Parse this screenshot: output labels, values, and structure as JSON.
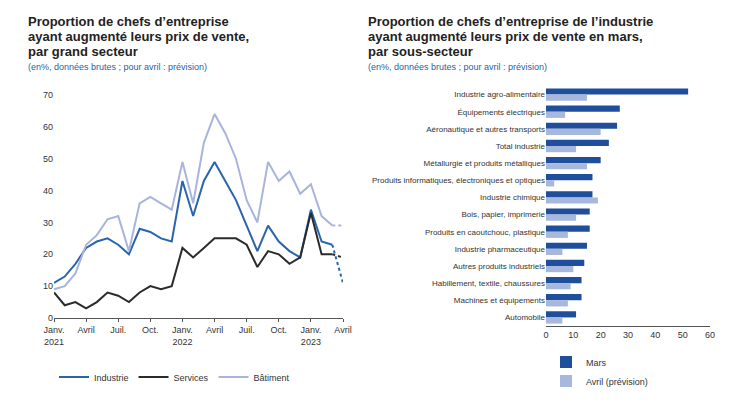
{
  "chart_data": [
    {
      "type": "line",
      "title": "Proportion de chefs d’entreprise\nayant augmenté leurs prix de vente,\npar grand secteur",
      "subtitle": "(en%, données brutes ; pour avril : prévision)",
      "categories": [
        "Janv.\n2021",
        null,
        null,
        "Avril",
        null,
        null,
        "Juil.",
        null,
        null,
        "Oct.",
        null,
        null,
        "Janv.\n2022",
        null,
        null,
        "Avril",
        null,
        null,
        "Juil.",
        null,
        null,
        "Oct.",
        null,
        null,
        "Janv.\n2023",
        null,
        null,
        "Avril"
      ],
      "series": [
        {
          "name": "Industrie",
          "color": "#2a64ad",
          "values": [
            11,
            13,
            17,
            22,
            24,
            25,
            23,
            20,
            28,
            27,
            25,
            24,
            43,
            32,
            43,
            49,
            43,
            37,
            29,
            21,
            29,
            24,
            21,
            19,
            34,
            24,
            23,
            null
          ]
        },
        {
          "name": "Industrie",
          "color": "#2a64ad",
          "line_style": "dotted",
          "values": [
            null,
            null,
            null,
            null,
            null,
            null,
            null,
            null,
            null,
            null,
            null,
            null,
            null,
            null,
            null,
            null,
            null,
            null,
            null,
            null,
            null,
            null,
            null,
            null,
            null,
            null,
            23,
            11
          ]
        },
        {
          "name": "Services",
          "color": "#2b2b2b",
          "values": [
            8,
            4,
            5,
            3,
            5,
            8,
            7,
            5,
            8,
            10,
            9,
            10,
            22,
            19,
            22,
            25,
            25,
            25,
            23,
            16,
            21,
            20,
            17,
            19,
            33,
            20,
            20,
            null
          ]
        },
        {
          "name": "Services",
          "color": "#2b2b2b",
          "line_style": "dotted",
          "values": [
            null,
            null,
            null,
            null,
            null,
            null,
            null,
            null,
            null,
            null,
            null,
            null,
            null,
            null,
            null,
            null,
            null,
            null,
            null,
            null,
            null,
            null,
            null,
            null,
            null,
            null,
            20,
            19
          ]
        },
        {
          "name": "Bâtiment",
          "color": "#a9b4dd",
          "values": [
            9,
            10,
            14,
            23,
            26,
            31,
            32,
            21,
            36,
            38,
            36,
            34,
            49,
            36,
            55,
            64,
            58,
            50,
            37,
            30,
            49,
            43,
            46,
            39,
            42,
            32,
            29,
            null
          ]
        },
        {
          "name": "Bâtiment",
          "color": "#a9b4dd",
          "line_style": "dotted",
          "values": [
            null,
            null,
            null,
            null,
            null,
            null,
            null,
            null,
            null,
            null,
            null,
            null,
            null,
            null,
            null,
            null,
            null,
            null,
            null,
            null,
            null,
            null,
            null,
            null,
            null,
            null,
            29,
            29
          ]
        }
      ],
      "ylim": [
        0,
        70
      ],
      "yticks": [
        0,
        10,
        20,
        30,
        40,
        50,
        60,
        70
      ],
      "grid": false,
      "legend": "bottom"
    },
    {
      "type": "bar",
      "orientation": "horizontal",
      "title": "Proportion de chefs d’entreprise de l’industrie\nayant augmenté leurs prix de vente en mars,\npar sous-secteur",
      "subtitle": "(en%, données brutes ; pour avril : prévision)",
      "categories": [
        "Industrie agro-alimentaire",
        "Équipements électriques",
        "Aéronautique et autres transports",
        "Total industrie",
        "Métallurgie et produits métalliques",
        "Produits informatiques, électroniques et optiques",
        "Industrie chimique",
        "Bois, papier, imprimerie",
        "Produits en caoutchouc, plastique",
        "Industrie pharmaceutique",
        "Autres produits industriels",
        "Habillement, textile, chaussures",
        "Machines et équipements",
        "Automobile"
      ],
      "series": [
        {
          "name": "Mars",
          "color": "#1f4e9c",
          "values": [
            52,
            27,
            26,
            23,
            20,
            17,
            17,
            16,
            16,
            15,
            14,
            13,
            13,
            11
          ]
        },
        {
          "name": "Avril (prévision)",
          "color": "#a8b8dc",
          "values": [
            15,
            7,
            20,
            11,
            15,
            3,
            19,
            11,
            8,
            6,
            10,
            9,
            8,
            6
          ]
        }
      ],
      "xlim": [
        0,
        60
      ],
      "xticks": [
        0,
        10,
        20,
        30,
        40,
        50,
        60
      ],
      "grid": false,
      "legend": "bottom"
    }
  ]
}
